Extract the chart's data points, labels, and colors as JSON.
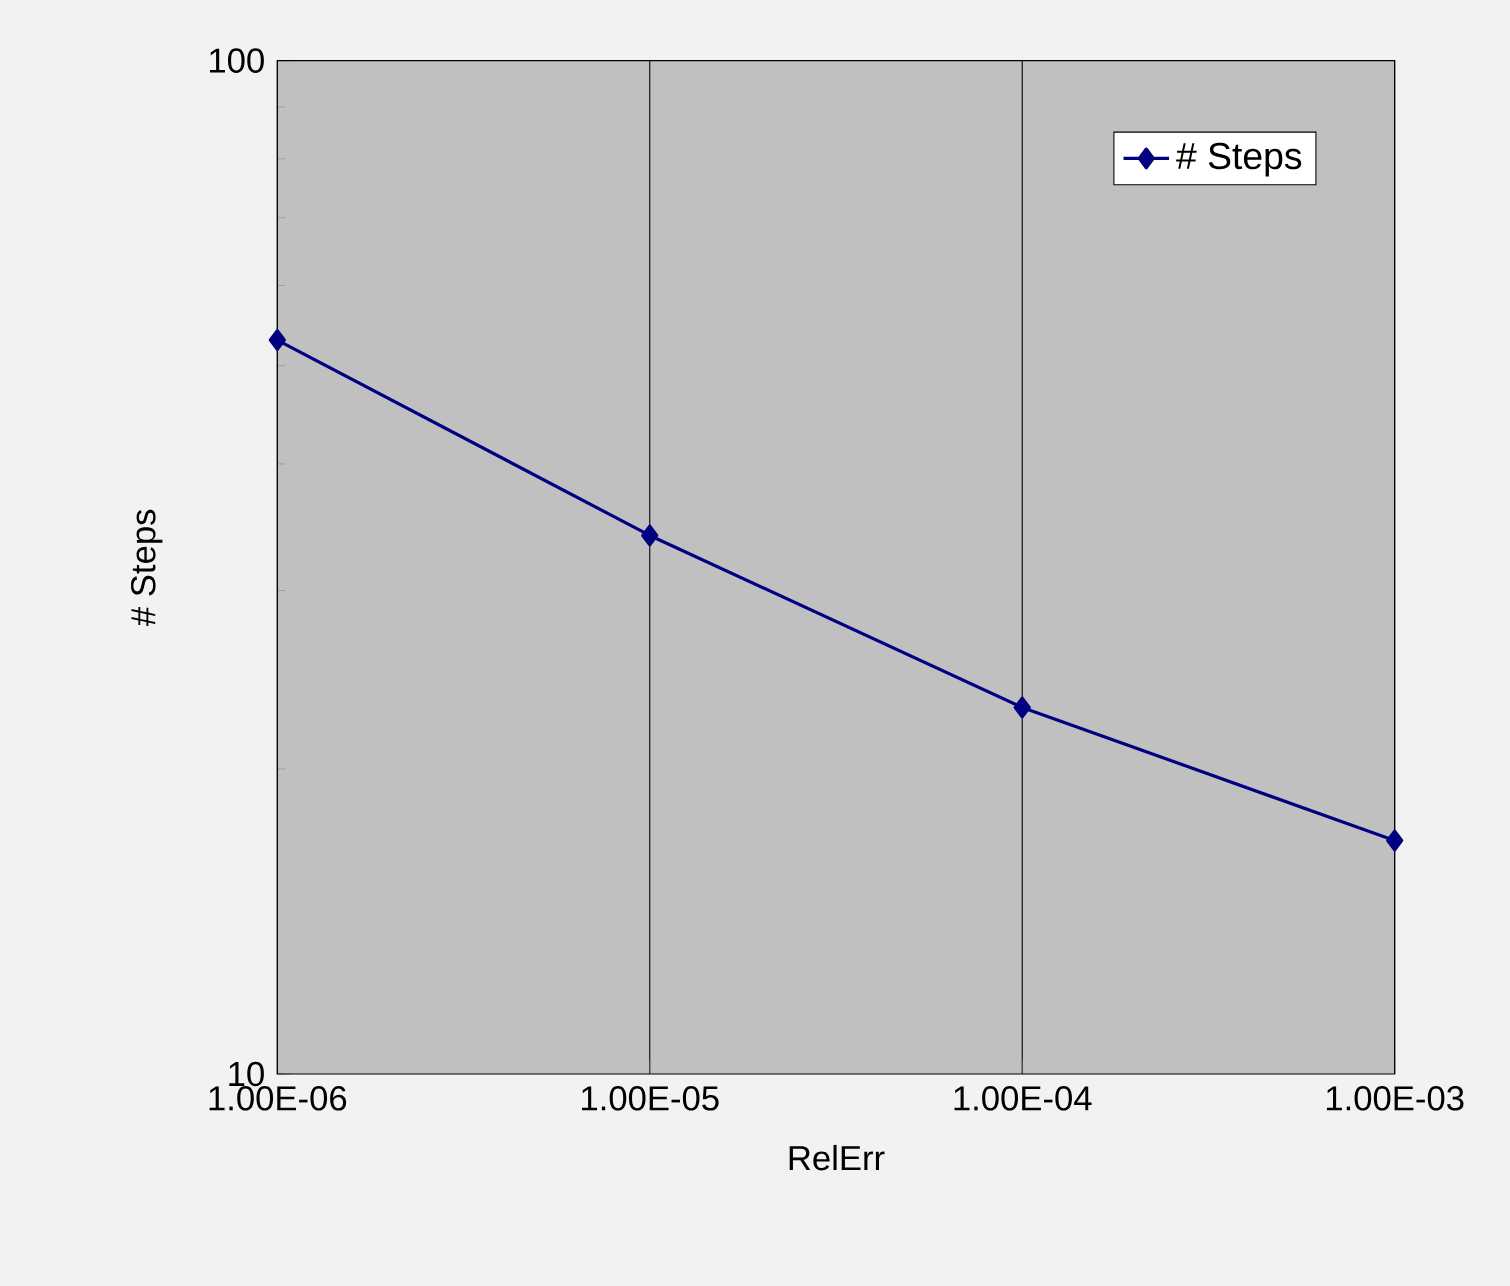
{
  "chart_data": {
    "type": "line",
    "xlabel": "RelErr",
    "ylabel": "# Steps",
    "log": "xy",
    "x": [
      1e-06,
      1e-05,
      0.0001,
      0.001
    ],
    "series": [
      {
        "name": "# Steps",
        "color": "#000080",
        "values": [
          53,
          34,
          23,
          17
        ]
      }
    ],
    "xlim": [
      1e-06,
      0.001
    ],
    "ylim": [
      10,
      100
    ],
    "xticks": [
      {
        "value": 1e-06,
        "label": "1.00E-06"
      },
      {
        "value": 1e-05,
        "label": "1.00E-05"
      },
      {
        "value": 0.0001,
        "label": "1.00E-04"
      },
      {
        "value": 0.001,
        "label": "1.00E-03"
      }
    ],
    "yticks": [
      10,
      100
    ],
    "grid": "x",
    "legend": "top right",
    "marker": "diamond",
    "line_style": "solid"
  }
}
